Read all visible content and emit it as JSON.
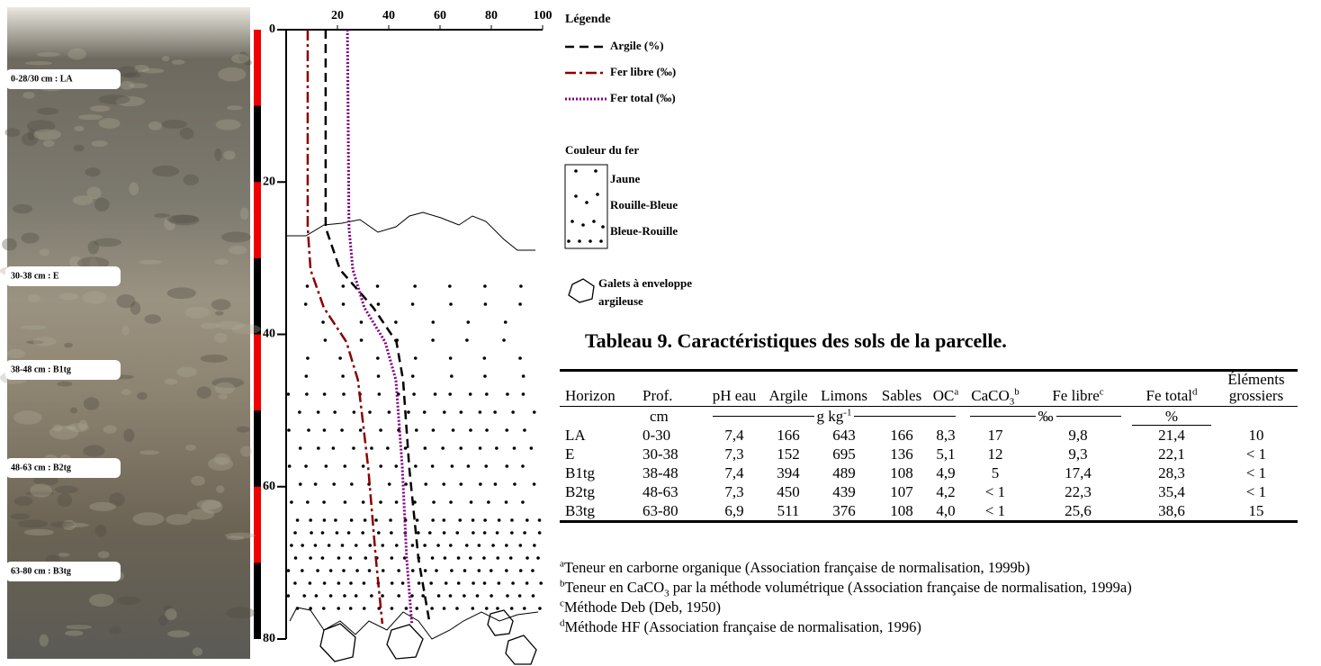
{
  "photo": {
    "labels": [
      "0-28/30 cm : LA",
      "30-38 cm : E",
      "38-48 cm : B1tg",
      "48-63 cm : B2tg",
      "63-80 cm : B3tg"
    ]
  },
  "chart_data": {
    "type": "line",
    "depths": [
      0,
      26,
      31.5,
      36.5,
      41,
      46,
      57.5,
      69.5,
      78
    ],
    "series": [
      {
        "name": "Argile (%)",
        "color": "#000000",
        "dash": "dashed",
        "values": [
          15.4,
          15.4,
          21,
          34,
          43,
          45.6,
          48,
          51.6,
          56
        ]
      },
      {
        "name": "Fer libre (‰)",
        "color": "#8b0000",
        "dash": "dashdot",
        "values": [
          8.4,
          8.4,
          9.5,
          14.7,
          23.5,
          28,
          32,
          35,
          37.5
        ]
      },
      {
        "name": "Fer total (‰)",
        "color": "#800080",
        "dash": "dotted",
        "values": [
          23.9,
          24.5,
          26,
          30.5,
          38.6,
          42.8,
          45.3,
          47,
          49
        ]
      }
    ],
    "xlim": [
      0,
      100
    ],
    "xticks": [
      20,
      40,
      60,
      80,
      100
    ],
    "ylim": [
      0,
      80
    ],
    "yticks": [
      0,
      20,
      40,
      60,
      80
    ]
  },
  "legend": {
    "title": "Légende",
    "iron_color": {
      "title": "Couleur du fer",
      "items": [
        "Jaune",
        "Rouille-Bleue",
        "Bleue-Rouille"
      ]
    },
    "pebbles": [
      "Galets à enveloppe",
      "argileuse"
    ]
  },
  "table": {
    "title": "Tableau 9. Caractéristiques des sols de la parcelle.",
    "header": [
      "Horizon",
      "Prof.",
      "pH eau",
      "Argile",
      "Limons",
      "Sables",
      {
        "text": "OC",
        "sup": "a"
      },
      {
        "text": "CaCO",
        "sub": "3",
        "sup": "b"
      },
      {
        "text": "Fe libre",
        "sup": "c"
      },
      {
        "text": "Fe total",
        "sup": "d"
      },
      "Éléments grossiers"
    ],
    "units": {
      "depth": "cm",
      "mass": {
        "text": "g kg",
        "sup": "-1"
      },
      "permil": "‰",
      "percent": "%"
    },
    "rows": [
      [
        "LA",
        "0-30",
        "7,4",
        "166",
        "643",
        "166",
        "8,3",
        "17",
        "9,8",
        "21,4",
        "10"
      ],
      [
        "E",
        "30-38",
        "7,3",
        "152",
        "695",
        "136",
        "5,1",
        "12",
        "9,3",
        "22,1",
        "< 1"
      ],
      [
        "B1tg",
        "38-48",
        "7,4",
        "394",
        "489",
        "108",
        "4,9",
        "5",
        "17,4",
        "28,3",
        "< 1"
      ],
      [
        "B2tg",
        "48-63",
        "7,3",
        "450",
        "439",
        "107",
        "4,2",
        "< 1",
        "22,3",
        "35,4",
        "< 1"
      ],
      [
        "B3tg",
        "63-80",
        "6,9",
        "511",
        "376",
        "108",
        "4,0",
        "< 1",
        "25,6",
        "38,6",
        "15"
      ]
    ],
    "footnotes": [
      {
        "mark": "a",
        "text": "Teneur en carborne organique (Association française de normalisation, 1999b)"
      },
      {
        "mark": "b",
        "text": "Teneur en CaCO",
        "sub": "3",
        "rest": " par la méthode volumétrique (Association française de normalisation, 1999a)"
      },
      {
        "mark": "c",
        "text": "Méthode Deb (Deb, 1950)"
      },
      {
        "mark": "d",
        "text": "Méthode HF (Association française de normalisation, 1996)"
      }
    ]
  }
}
